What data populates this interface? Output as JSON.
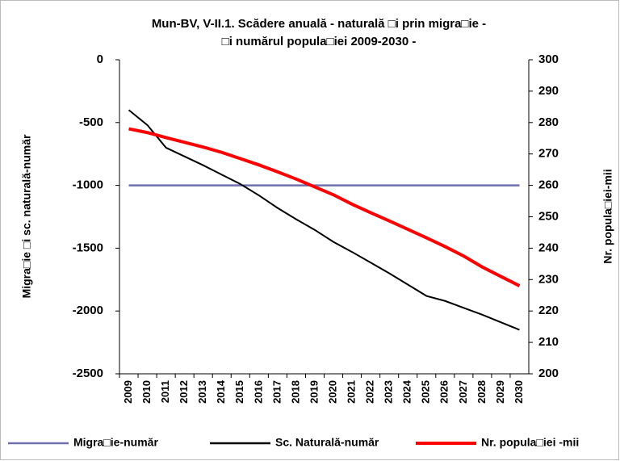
{
  "chart_data": {
    "type": "line",
    "title": [
      "Mun-BV,  V-II.1. Scădere anuală - naturală □i prin migra□ie -",
      "□i numărul popula□iei 2009-2030 -"
    ],
    "y_label": "Migra□ie □i sc. naturală-număr",
    "y2_label": "Nr. popula□iei-mii",
    "categories": [
      "2009",
      "2010",
      "2011",
      "2012",
      "2013",
      "2014",
      "2015",
      "2016",
      "2017",
      "2018",
      "2019",
      "2020",
      "2021",
      "2022",
      "2023",
      "2024",
      "2025",
      "2026",
      "2027",
      "2028",
      "2029",
      "2030"
    ],
    "ylim": [
      -2500,
      0
    ],
    "yticks": [
      -2500,
      -2000,
      -1500,
      -1000,
      -500,
      0
    ],
    "y2lim": [
      200,
      300
    ],
    "y2ticks": [
      200,
      210,
      220,
      230,
      240,
      250,
      260,
      270,
      280,
      290,
      300
    ],
    "grid": false,
    "legend": "bottom",
    "series": [
      {
        "name": "Migra□ie-număr",
        "color": "#7070b0",
        "values": [
          -1000,
          -1000,
          -1000,
          -1000,
          -1000,
          -1000,
          -1000,
          -1000,
          -1000,
          -1000,
          -1000,
          -1000,
          -1000,
          -1000,
          -1000,
          -1000,
          -1000,
          -1000,
          -1000,
          -1000,
          -1000,
          -1000
        ]
      },
      {
        "name": "Sc. Naturală-număr",
        "color": "#000000",
        "values": [
          -400,
          -520,
          -700,
          -770,
          -840,
          -915,
          -990,
          -1080,
          -1180,
          -1270,
          -1355,
          -1450,
          -1530,
          -1615,
          -1700,
          -1790,
          -1880,
          -1920,
          -1975,
          -2030,
          -2090,
          -2150
        ]
      },
      {
        "name": "Nr. popula□iei -mii",
        "color": "#ff0000",
        "axis": "y2",
        "values": [
          278,
          276.8,
          275.2,
          273.7,
          272.2,
          270.5,
          268.5,
          266.5,
          264.3,
          262,
          259.5,
          257,
          254,
          251.3,
          248.7,
          246,
          243.3,
          240.5,
          237.5,
          234,
          231,
          228
        ]
      }
    ]
  }
}
